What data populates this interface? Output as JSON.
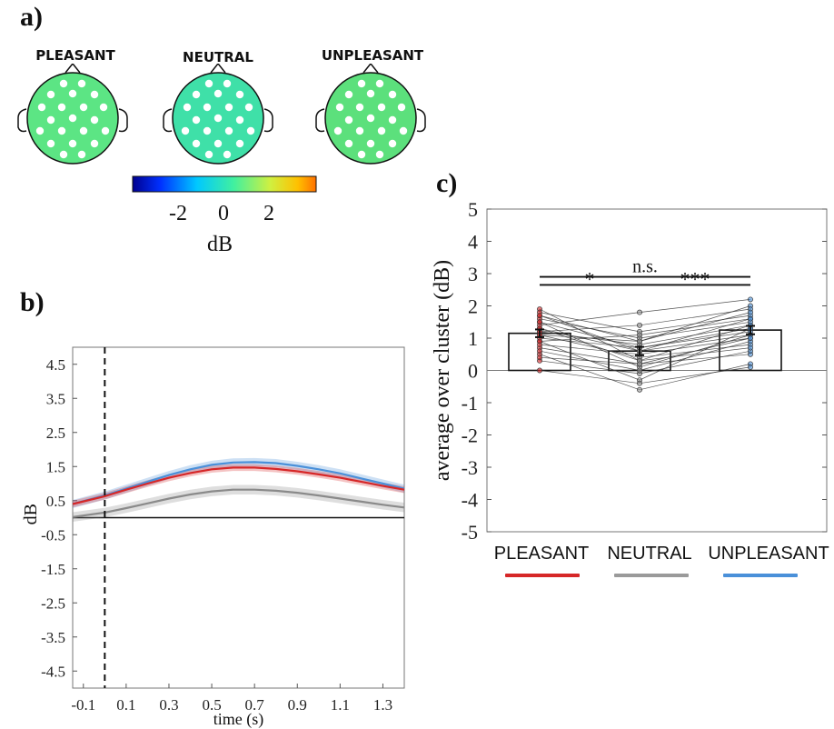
{
  "panel_a": {
    "label": "a)",
    "conditions": [
      "PLEASANT",
      "NEUTRAL",
      "UNPLEASANT"
    ],
    "colorbar": {
      "ticks": [
        "-2",
        "0",
        "2"
      ],
      "unit": "dB",
      "range": [
        -4,
        4
      ],
      "colormap": "jet"
    }
  },
  "panel_b": {
    "label": "b)"
  },
  "panel_c": {
    "label": "c)"
  },
  "colors": {
    "pleasant": "#d62728",
    "neutral": "#9a9a9a",
    "unpleasant": "#4a90d9",
    "topo_fill": "#4be08a"
  },
  "legend": [
    {
      "label": "PLEASANT",
      "color": "#d62728"
    },
    {
      "label": "NEUTRAL",
      "color": "#9a9a9a"
    },
    {
      "label": "UNPLEASANT",
      "color": "#4a90d9"
    }
  ],
  "chart_data": [
    {
      "type": "line",
      "panel": "b",
      "xlabel": "time (s)",
      "ylabel": "dB",
      "xlim": [
        -0.15,
        1.4
      ],
      "ylim": [
        -5,
        5
      ],
      "x_ticks": [
        "-0.1",
        "0.1",
        "0.3",
        "0.5",
        "0.7",
        "0.9",
        "1.1",
        "1.3"
      ],
      "y_ticks": [
        "4.5",
        "3.5",
        "2.5",
        "1.5",
        "0.5",
        "-0.5",
        "-1.5",
        "-2.5",
        "-3.5",
        "-4.5"
      ],
      "event_marker_x": 0.0,
      "grid": false,
      "x": [
        -0.15,
        0.0,
        0.1,
        0.2,
        0.3,
        0.4,
        0.5,
        0.6,
        0.7,
        0.8,
        0.9,
        1.0,
        1.1,
        1.2,
        1.3,
        1.4
      ],
      "series": [
        {
          "color": "#4a90d9",
          "values": [
            0.4,
            0.65,
            0.85,
            1.05,
            1.25,
            1.42,
            1.55,
            1.62,
            1.63,
            1.6,
            1.52,
            1.42,
            1.3,
            1.15,
            1.0,
            0.85
          ],
          "band": 0.12
        },
        {
          "color": "#d62728",
          "values": [
            0.4,
            0.63,
            0.82,
            1.0,
            1.17,
            1.31,
            1.42,
            1.47,
            1.47,
            1.43,
            1.36,
            1.27,
            1.17,
            1.05,
            0.93,
            0.82
          ],
          "band": 0.1
        },
        {
          "color": "#8a8a8a",
          "values": [
            0.02,
            0.15,
            0.28,
            0.42,
            0.56,
            0.68,
            0.77,
            0.82,
            0.82,
            0.79,
            0.73,
            0.65,
            0.56,
            0.47,
            0.38,
            0.3
          ],
          "band": 0.14
        }
      ]
    },
    {
      "type": "bar",
      "panel": "c",
      "ylabel": "average over cluster (dB)",
      "ylim": [
        -5,
        5
      ],
      "y_ticks": [
        "5",
        "4",
        "3",
        "2",
        "1",
        "0",
        "-1",
        "-2",
        "-3",
        "-4",
        "-5"
      ],
      "categories": [
        "PLEASANT",
        "NEUTRAL",
        "UNPLEASANT"
      ],
      "values": [
        1.15,
        0.6,
        1.25
      ],
      "sem": [
        0.12,
        0.13,
        0.13
      ],
      "significance": [
        {
          "label": "n.s.",
          "from": 0,
          "to": 2
        },
        {
          "label": "*",
          "from": 0,
          "to": 1
        },
        {
          "label": "***",
          "from": 1,
          "to": 2
        }
      ],
      "subjects": [
        [
          1.9,
          0.3,
          1.4
        ],
        [
          1.7,
          0.9,
          2.0
        ],
        [
          1.5,
          0.1,
          1.1
        ],
        [
          1.3,
          0.6,
          1.6
        ],
        [
          1.2,
          1.4,
          1.9
        ],
        [
          1.1,
          0.4,
          0.8
        ],
        [
          0.9,
          -0.3,
          1.3
        ],
        [
          0.7,
          0.2,
          0.5
        ],
        [
          1.6,
          1.0,
          1.5
        ],
        [
          1.0,
          0.7,
          1.2
        ],
        [
          0.5,
          -0.6,
          0.2
        ],
        [
          1.4,
          1.8,
          2.2
        ],
        [
          0.8,
          0.5,
          1.0
        ],
        [
          1.2,
          0.8,
          1.4
        ],
        [
          0.3,
          -0.1,
          0.6
        ],
        [
          1.8,
          1.2,
          1.7
        ],
        [
          0.6,
          0.0,
          0.9
        ],
        [
          1.5,
          0.7,
          1.3
        ],
        [
          0.0,
          -0.4,
          0.1
        ],
        [
          1.1,
          0.9,
          1.8
        ],
        [
          1.3,
          0.3,
          0.7
        ],
        [
          0.9,
          1.1,
          1.6
        ],
        [
          1.7,
          0.6,
          1.1
        ],
        [
          0.4,
          0.2,
          1.0
        ]
      ]
    }
  ]
}
